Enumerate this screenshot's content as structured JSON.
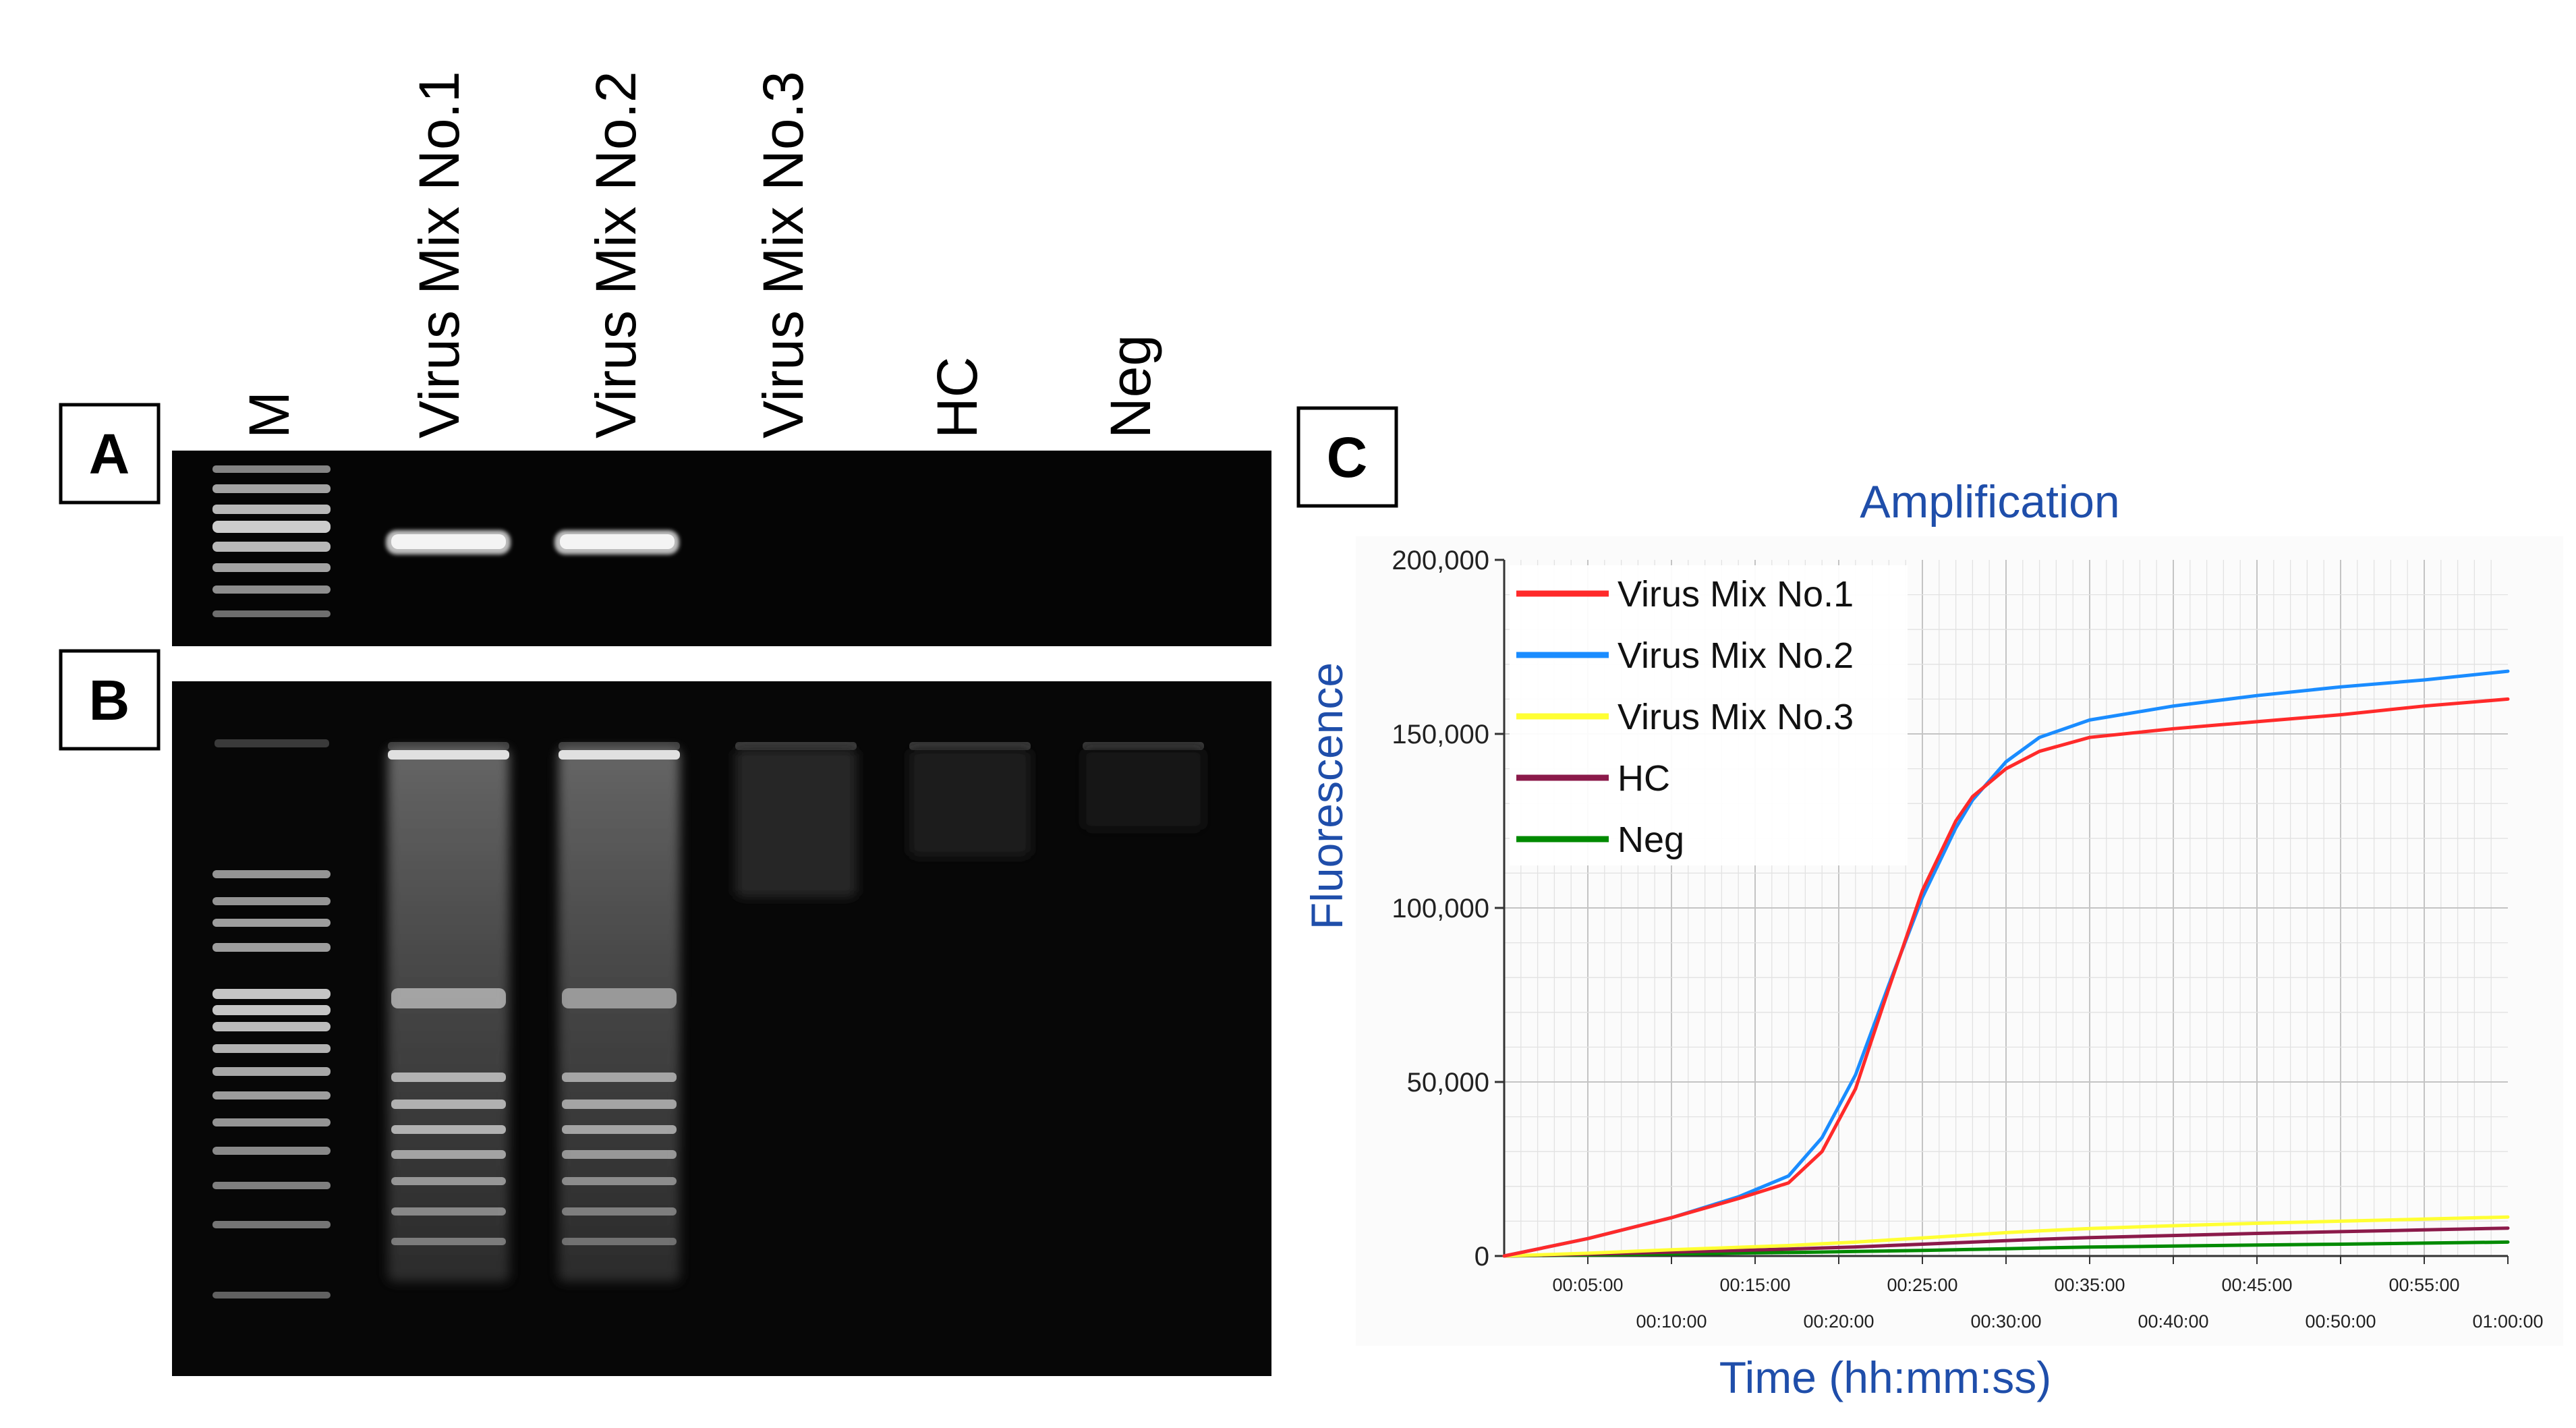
{
  "panels": {
    "a": "A",
    "b": "B",
    "c": "C"
  },
  "lanes": [
    "M",
    "Virus Mix No.1",
    "Virus Mix No.2",
    "Virus Mix No.3",
    "HC",
    "Neg"
  ],
  "chart_data": {
    "type": "line",
    "title": "Amplification",
    "xlabel": "Time (hh:mm:ss)",
    "ylabel": "Fluorescence",
    "title_color": "#1f4eaa",
    "x_unit": "hh:mm:ss",
    "xlim": [
      "00:00:00",
      "01:00:00"
    ],
    "ylim": [
      0,
      200000
    ],
    "x_ticks": [
      "00:05:00",
      "00:10:00",
      "00:15:00",
      "00:20:00",
      "00:25:00",
      "00:30:00",
      "00:35:00",
      "00:40:00",
      "00:45:00",
      "00:50:00",
      "00:55:00",
      "01:00:00"
    ],
    "y_ticks": [
      "0",
      "50,000",
      "100,000",
      "150,000",
      "200,000"
    ],
    "y_tick_values": [
      0,
      50000,
      100000,
      150000,
      200000
    ],
    "grid": true,
    "legend_position": "top-left",
    "x": [
      "00:00:00",
      "00:05:00",
      "00:10:00",
      "00:14:00",
      "00:17:00",
      "00:19:00",
      "00:21:00",
      "00:23:00",
      "00:25:00",
      "00:27:00",
      "00:28:00",
      "00:30:00",
      "00:32:00",
      "00:35:00",
      "00:40:00",
      "00:45:00",
      "00:50:00",
      "00:55:00",
      "01:00:00"
    ],
    "series": [
      {
        "name": "Virus Mix No.1",
        "color": "#ff2a2a",
        "values": [
          0,
          5000,
          11000,
          16500,
          21000,
          30000,
          48000,
          77000,
          105000,
          125000,
          132000,
          140000,
          145000,
          149000,
          151500,
          153500,
          155500,
          158000,
          160000
        ]
      },
      {
        "name": "Virus Mix No.2",
        "color": "#1a8cff",
        "values": [
          0,
          5000,
          11000,
          17000,
          23000,
          34000,
          52000,
          78000,
          103000,
          123000,
          131000,
          142000,
          149000,
          154000,
          158000,
          161000,
          163500,
          165500,
          168000
        ]
      },
      {
        "name": "Virus Mix No.3",
        "color": "#ffff33",
        "values": [
          0,
          800,
          1800,
          2500,
          3000,
          3500,
          4000,
          4600,
          5200,
          5800,
          6100,
          6700,
          7200,
          7900,
          8700,
          9400,
          10000,
          10600,
          11200
        ]
      },
      {
        "name": "HC",
        "color": "#8b1a4a",
        "values": [
          0,
          500,
          1100,
          1600,
          2000,
          2300,
          2600,
          3000,
          3400,
          3800,
          4000,
          4400,
          4800,
          5300,
          5900,
          6500,
          7000,
          7500,
          8000
        ]
      },
      {
        "name": "Neg",
        "color": "#008a00",
        "values": [
          0,
          300,
          600,
          850,
          1000,
          1150,
          1300,
          1450,
          1600,
          1800,
          1900,
          2100,
          2300,
          2550,
          2850,
          3150,
          3400,
          3700,
          4000
        ]
      }
    ]
  }
}
